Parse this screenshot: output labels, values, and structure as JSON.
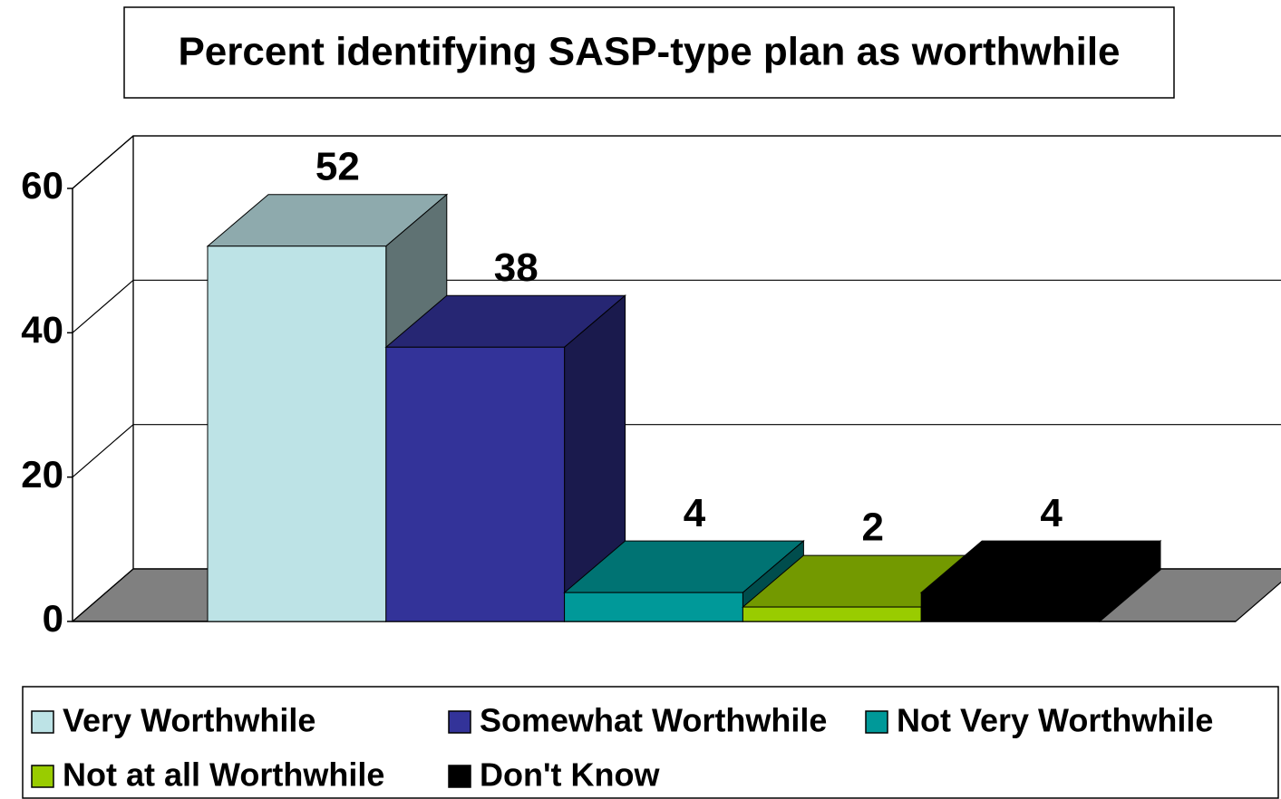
{
  "chart_data": {
    "type": "bar3d",
    "title": "Percent identifying SASP-type plan as worthwhile",
    "series": [
      {
        "name": "Very Worthwhile",
        "color": "#bde3e6",
        "values": [
          52
        ]
      },
      {
        "name": "Somewhat Worthwhile",
        "color": "#333399",
        "values": [
          38
        ]
      },
      {
        "name": "Not Very Worthwhile",
        "color": "#009999",
        "values": [
          4
        ]
      },
      {
        "name": "Not at all Worthwhile",
        "color": "#99cc00",
        "values": [
          2
        ]
      },
      {
        "name": "Don't Know",
        "color": "#000000",
        "values": [
          4
        ]
      }
    ],
    "ylim": [
      0,
      60
    ],
    "yticks": [
      0,
      20,
      40,
      60
    ],
    "grid": true,
    "legend": "bottom"
  }
}
